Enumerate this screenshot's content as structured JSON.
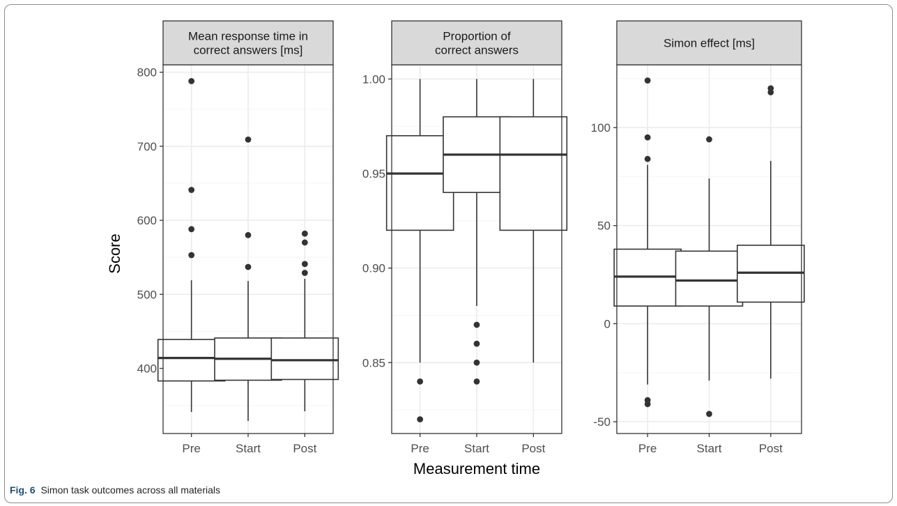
{
  "caption": {
    "fig_label": "Fig. 6",
    "text": "Simon task outcomes across all materials"
  },
  "colors": {
    "strip_fill": "#d9d9d9",
    "panel_border": "#333333",
    "grid_major": "#ebebeb",
    "grid_minor": "#f5f5f5",
    "box_line": "#333333",
    "outlier": "#333333"
  },
  "chart_data": {
    "type": "box",
    "xlabel": "Measurement time",
    "ylabel": "Score",
    "categories": [
      "Pre",
      "Start",
      "Post"
    ],
    "panels": [
      {
        "title_lines": [
          "Mean response time in",
          "correct answers [ms]"
        ],
        "ylim": [
          312,
          810
        ],
        "yticks": [
          400,
          500,
          600,
          700,
          800
        ],
        "ytick_labels": [
          "400",
          "500",
          "600",
          "700",
          "800"
        ],
        "minor_ticks": [
          350,
          450,
          550,
          650,
          750
        ],
        "boxes": [
          {
            "category": "Pre",
            "whisker_low": 341,
            "q1": 383,
            "median": 414,
            "q3": 439,
            "whisker_high": 519,
            "outliers": [
              553,
              588,
              641,
              788
            ]
          },
          {
            "category": "Start",
            "whisker_low": 329,
            "q1": 384,
            "median": 413,
            "q3": 441,
            "whisker_high": 518,
            "outliers": [
              537,
              580,
              709
            ]
          },
          {
            "category": "Post",
            "whisker_low": 342,
            "q1": 385,
            "median": 411,
            "q3": 441,
            "whisker_high": 521,
            "outliers": [
              529,
              541,
              570,
              582
            ]
          }
        ]
      },
      {
        "title_lines": [
          "Proportion of",
          "correct answers"
        ],
        "ylim": [
          0.8125,
          1.0075
        ],
        "yticks": [
          0.85,
          0.9,
          0.95,
          1.0
        ],
        "ytick_labels": [
          "0.85",
          "0.90",
          "0.95",
          "1.00"
        ],
        "minor_ticks": [
          0.825,
          0.875,
          0.925,
          0.975
        ],
        "boxes": [
          {
            "category": "Pre",
            "whisker_low": 0.85,
            "q1": 0.92,
            "median": 0.95,
            "q3": 0.97,
            "whisker_high": 1.0,
            "outliers": [
              0.82,
              0.84
            ]
          },
          {
            "category": "Start",
            "whisker_low": 0.88,
            "q1": 0.94,
            "median": 0.96,
            "q3": 0.98,
            "whisker_high": 1.0,
            "outliers": [
              0.84,
              0.85,
              0.86,
              0.87
            ]
          },
          {
            "category": "Post",
            "whisker_low": 0.85,
            "q1": 0.92,
            "median": 0.96,
            "q3": 0.98,
            "whisker_high": 1.0,
            "outliers": []
          }
        ]
      },
      {
        "title_lines": [
          "Simon effect [ms]"
        ],
        "ylim": [
          -56,
          132
        ],
        "yticks": [
          -50,
          0,
          50,
          100
        ],
        "ytick_labels": [
          "-50",
          "0",
          "50",
          "100"
        ],
        "minor_ticks": [
          -25,
          25,
          75,
          125
        ],
        "boxes": [
          {
            "category": "Pre",
            "whisker_low": -31,
            "q1": 9,
            "median": 24,
            "q3": 38,
            "whisker_high": 81,
            "outliers": [
              -41,
              -39,
              84,
              95,
              124
            ]
          },
          {
            "category": "Start",
            "whisker_low": -29,
            "q1": 9,
            "median": 22,
            "q3": 37,
            "whisker_high": 74,
            "outliers": [
              -46,
              94
            ]
          },
          {
            "category": "Post",
            "whisker_low": -28,
            "q1": 11,
            "median": 26,
            "q3": 40,
            "whisker_high": 83,
            "outliers": [
              118,
              120
            ]
          }
        ]
      }
    ]
  }
}
